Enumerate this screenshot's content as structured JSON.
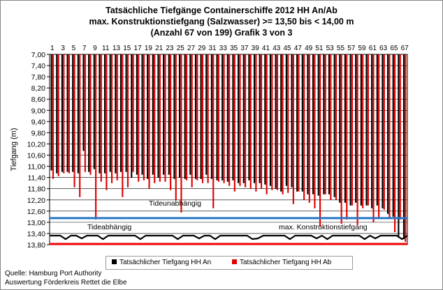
{
  "title": {
    "line1": "Tatsächliche Tiefgänge Containerschiffe  2012 HH An/Ab",
    "line2": "max. Konstruktionstiefgang  (Salzwasser) >= 13,50 bis < 14,00 m",
    "line3": "(Anzahl 67 von 199) Grafik 3 von 3"
  },
  "source": {
    "line1": "Quelle: Hamburg Port Authority",
    "line2": "Auswertung Förderkreis Rettet die Elbe"
  },
  "colors": {
    "an": "#000000",
    "ab": "#e00000",
    "tideunabhaengig": "#2576c6",
    "tideabhaengig": "#000000",
    "konstruktion": "#ee0000",
    "grid": "#000000"
  },
  "chart_data": {
    "type": "bar",
    "ylabel": "Tiefgang (m)",
    "y_inverted": true,
    "ylim": [
      7.0,
      13.8
    ],
    "yticks": [
      "7,00",
      "7,40",
      "7,80",
      "8,20",
      "8,60",
      "9,00",
      "9,40",
      "9,80",
      "10,20",
      "10,60",
      "11,00",
      "11,40",
      "11,80",
      "12,20",
      "12,60",
      "13,00",
      "13,40",
      "13,80"
    ],
    "x": [
      1,
      2,
      3,
      4,
      5,
      6,
      7,
      8,
      9,
      10,
      11,
      12,
      13,
      14,
      15,
      16,
      17,
      18,
      19,
      20,
      21,
      22,
      23,
      24,
      25,
      26,
      27,
      28,
      29,
      30,
      31,
      32,
      33,
      34,
      35,
      36,
      37,
      38,
      39,
      40,
      41,
      42,
      43,
      44,
      45,
      46,
      47,
      48,
      49,
      50,
      51,
      52,
      53,
      54,
      55,
      56,
      57,
      58,
      59,
      60,
      61,
      62,
      63,
      64,
      65,
      66,
      67
    ],
    "xticks": [
      "1",
      "3",
      "5",
      "7",
      "9",
      "11",
      "13",
      "15",
      "17",
      "19",
      "21",
      "23",
      "25",
      "27",
      "29",
      "31",
      "33",
      "35",
      "37",
      "39",
      "41",
      "43",
      "45",
      "47",
      "49",
      "51",
      "53",
      "55",
      "57",
      "59",
      "61",
      "63",
      "65",
      "67"
    ],
    "series": [
      {
        "name": "Tatsächlicher Tiefgang HH An",
        "values": [
          11.15,
          11.25,
          11.2,
          11.2,
          11.2,
          11.25,
          10.45,
          11.2,
          11.1,
          11.25,
          11.25,
          11.2,
          11.25,
          11.2,
          11.2,
          11.4,
          11.3,
          11.3,
          11.45,
          11.3,
          11.4,
          11.3,
          11.3,
          11.45,
          11.4,
          11.45,
          11.3,
          11.45,
          11.45,
          11.3,
          11.45,
          11.5,
          11.5,
          11.55,
          11.5,
          11.6,
          11.6,
          11.5,
          11.6,
          11.6,
          11.65,
          11.7,
          11.8,
          11.9,
          11.7,
          11.75,
          11.9,
          11.9,
          12.0,
          12.0,
          12.05,
          12.0,
          12.0,
          12.1,
          12.3,
          12.3,
          12.4,
          12.3,
          12.4,
          12.4,
          12.5,
          12.4,
          12.5,
          12.7,
          12.8,
          13.5,
          13.6
        ]
      },
      {
        "name": "Tatsächlicher Tiefgang HH Ab",
        "values": [
          11.45,
          11.35,
          11.25,
          11.25,
          11.75,
          12.1,
          11.2,
          11.3,
          12.9,
          11.55,
          11.85,
          11.6,
          11.5,
          12.1,
          11.75,
          11.2,
          11.55,
          11.5,
          11.8,
          11.6,
          11.55,
          11.55,
          11.85,
          12.2,
          12.65,
          11.5,
          11.75,
          11.5,
          11.6,
          11.6,
          12.5,
          11.55,
          11.6,
          11.7,
          11.9,
          11.7,
          11.75,
          11.8,
          11.9,
          11.8,
          12.0,
          11.85,
          11.85,
          12.0,
          11.95,
          12.35,
          11.9,
          12.2,
          12.3,
          12.5,
          13.15,
          12.0,
          12.2,
          12.2,
          13.05,
          12.9,
          12.4,
          13.1,
          12.5,
          12.4,
          13.0,
          12.85,
          12.55,
          12.85,
          13.35,
          12.9,
          13.7
        ]
      }
    ],
    "reference_lines": [
      {
        "name": "Tideunabhängig",
        "y": 12.85
      },
      {
        "name": "Tideabhängig",
        "y": 13.55
      },
      {
        "name": "max. Konstruktionstiefgang",
        "y": 13.8
      }
    ]
  }
}
